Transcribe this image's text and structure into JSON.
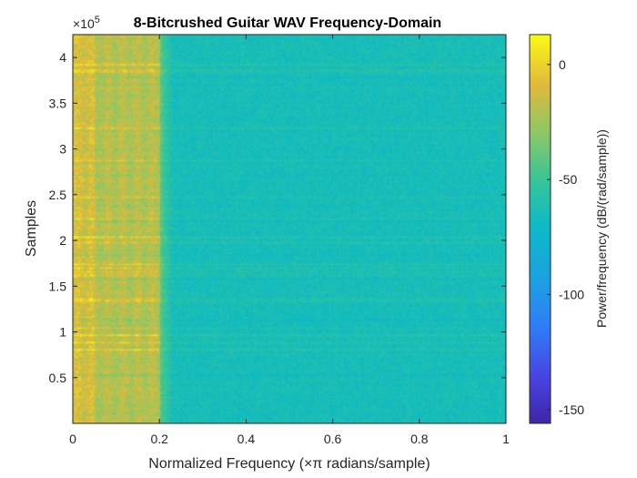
{
  "chart_data": {
    "type": "heatmap",
    "title": "8-Bitcrushed Guitar WAV Frequency-Domain",
    "xlabel": "Normalized Frequency (×π radians/sample)",
    "ylabel": "Samples",
    "xlim": [
      0,
      1
    ],
    "ylim": [
      0,
      4.25
    ],
    "y_exponent_label": "×10",
    "y_exponent_power": "5",
    "x_ticks": [
      {
        "value": 0,
        "label": "0"
      },
      {
        "value": 0.2,
        "label": "0.2"
      },
      {
        "value": 0.4,
        "label": "0.4"
      },
      {
        "value": 0.6,
        "label": "0.6"
      },
      {
        "value": 0.8,
        "label": "0.8"
      },
      {
        "value": 1,
        "label": "1"
      }
    ],
    "y_ticks": [
      {
        "value": 0.5,
        "label": "0.5"
      },
      {
        "value": 1,
        "label": "1"
      },
      {
        "value": 1.5,
        "label": "1.5"
      },
      {
        "value": 2,
        "label": "2"
      },
      {
        "value": 2.5,
        "label": "2.5"
      },
      {
        "value": 3,
        "label": "3"
      },
      {
        "value": 3.5,
        "label": "3.5"
      },
      {
        "value": 4,
        "label": "4"
      }
    ],
    "colorbar": {
      "label": "Power/frequency (dB/(rad/sample))",
      "range": [
        -156,
        13
      ],
      "ticks": [
        {
          "value": 0,
          "label": "0"
        },
        {
          "value": -50,
          "label": "-50"
        },
        {
          "value": -100,
          "label": "-100"
        },
        {
          "value": -150,
          "label": "-150"
        }
      ],
      "colormap": "parula"
    },
    "approx_power_db": {
      "frequency_below_0.2": -20,
      "frequency_above_0.2": -65
    },
    "grid": false
  }
}
